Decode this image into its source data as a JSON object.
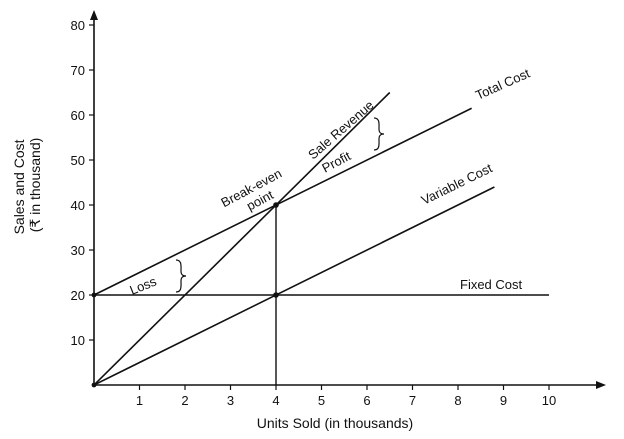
{
  "chart_data": {
    "type": "line",
    "xlabel": "Units Sold (in thousands)",
    "ylabel_line1": "Sales and Cost",
    "ylabel_line2": "(₹ in thousand)",
    "xlim": [
      0,
      10
    ],
    "ylim": [
      0,
      80
    ],
    "x_ticks": [
      "1",
      "2",
      "3",
      "4",
      "5",
      "6",
      "7",
      "8",
      "9",
      "10"
    ],
    "y_ticks": [
      "10",
      "20",
      "30",
      "40",
      "50",
      "60",
      "70",
      "80"
    ],
    "grid": false,
    "series": [
      {
        "name": "Fixed Cost",
        "x": [
          0,
          10
        ],
        "y": [
          20,
          20
        ]
      },
      {
        "name": "Variable Cost",
        "x": [
          0,
          8.8
        ],
        "y": [
          0,
          44
        ]
      },
      {
        "name": "Total Cost",
        "x": [
          0,
          8.3
        ],
        "y": [
          20,
          61.5
        ]
      },
      {
        "name": "Sale Revenue",
        "x": [
          0,
          6.5
        ],
        "y": [
          0,
          65
        ]
      }
    ],
    "annotations": {
      "break_even_line1": "Break-even",
      "break_even_line2": "point",
      "break_even": {
        "x": 4,
        "y": 40
      },
      "profit": "Profit",
      "loss": "Loss"
    },
    "colors": {
      "line": "#111111",
      "background": "#ffffff"
    }
  }
}
